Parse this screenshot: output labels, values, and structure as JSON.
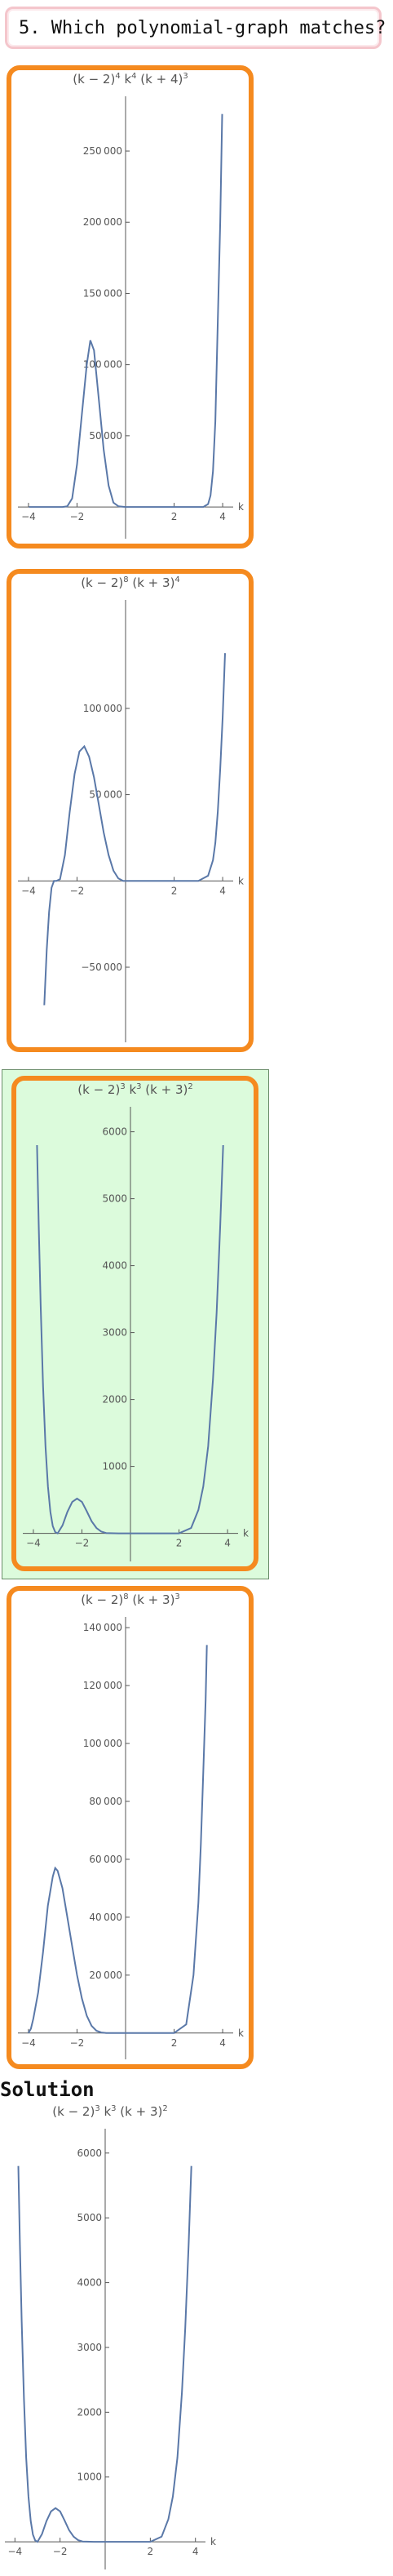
{
  "question": {
    "text": "5. Which polynomial‐graph matches?"
  },
  "solution": {
    "heading": "Solution"
  },
  "colors": {
    "choice_border": "#f58a1f",
    "selected_background": "#dcfbdc",
    "curve": "#5a78a8"
  },
  "selected_choice": 3,
  "chart_data": [
    {
      "type": "line",
      "role": "choice-1",
      "title_parts": [
        [
          "(k",
          ""
        ],
        [
          " − 2)",
          "4"
        ],
        [
          " k",
          "4"
        ],
        [
          " (k + 4)",
          "3"
        ]
      ],
      "xlabel": "k",
      "xlim": [
        -4.3,
        4.3
      ],
      "ylim": [
        -12000,
        285000
      ],
      "xticks": [
        -4,
        -2,
        2,
        4
      ],
      "xtick_labels": [
        "−4",
        "−2",
        "2",
        "4"
      ],
      "yticks": [
        50000,
        100000,
        150000,
        200000,
        250000
      ],
      "ytick_labels": [
        "50 000",
        "100 000",
        "150 000",
        "200 000",
        "250 000"
      ],
      "x": [
        -3.98,
        -3.9,
        -3.8,
        -3.7,
        -3.6,
        -3.5,
        -3.4,
        -3.2,
        -3.0,
        -2.8,
        -2.6,
        -2.4,
        -2.2,
        -2.0,
        -1.8,
        -1.6,
        -1.45,
        -1.3,
        -1.1,
        -0.9,
        -0.7,
        -0.5,
        -0.3,
        0.0,
        0.5,
        1.0,
        1.5,
        2.0,
        2.5,
        3.0,
        3.2,
        3.4,
        3.5,
        3.6,
        3.7,
        3.8,
        3.9,
        3.98
      ],
      "values": [
        0,
        0,
        0,
        0,
        0,
        0,
        0,
        0,
        0,
        0,
        0,
        500,
        6000,
        30000,
        65000,
        100000,
        117000,
        110000,
        75000,
        40000,
        15000,
        3000,
        500,
        0,
        0,
        0,
        0,
        0,
        0,
        0,
        0,
        2000,
        8000,
        25000,
        60000,
        130000,
        200000,
        276000
      ]
    },
    {
      "type": "line",
      "role": "choice-2",
      "title_parts": [
        [
          "(k",
          ""
        ],
        [
          " − 2)",
          "8"
        ],
        [
          " (k + 3)",
          "4"
        ]
      ],
      "xlabel": "k",
      "xlim": [
        -4.3,
        4.3
      ],
      "ylim": [
        -85000,
        160000
      ],
      "xticks": [
        -4,
        -2,
        2,
        4
      ],
      "xtick_labels": [
        "−4",
        "−2",
        "2",
        "4"
      ],
      "yticks": [
        -50000,
        50000,
        100000
      ],
      "ytick_labels": [
        "−50 000",
        "50 000",
        "100 000"
      ],
      "x": [
        -3.35,
        -3.25,
        -3.15,
        -3.05,
        -2.95,
        -2.85,
        -2.7,
        -2.5,
        -2.3,
        -2.1,
        -1.9,
        -1.7,
        -1.5,
        -1.3,
        -1.1,
        -0.9,
        -0.7,
        -0.5,
        -0.3,
        -0.1,
        0.5,
        1.0,
        2.0,
        3.0,
        3.4,
        3.6,
        3.7,
        3.8,
        3.9,
        4.0,
        4.1
      ],
      "values": [
        -72000,
        -40000,
        -18000,
        -4000,
        0,
        0,
        1000,
        15000,
        40000,
        62000,
        75000,
        78000,
        72000,
        60000,
        44000,
        28000,
        15000,
        6000,
        1500,
        0,
        0,
        0,
        0,
        0,
        3000,
        12000,
        22000,
        40000,
        65000,
        95000,
        132000
      ]
    },
    {
      "type": "line",
      "role": "choice-3",
      "title_parts": [
        [
          "(k",
          ""
        ],
        [
          " − 2)",
          "3"
        ],
        [
          " k",
          "3"
        ],
        [
          " (k + 3)",
          "2"
        ]
      ],
      "xlabel": "k",
      "xlim": [
        -4.3,
        4.3
      ],
      "ylim": [
        -200,
        6300
      ],
      "xticks": [
        -4,
        -2,
        2,
        4
      ],
      "xtick_labels": [
        "−4",
        "−2",
        "2",
        "4"
      ],
      "yticks": [
        1000,
        2000,
        3000,
        4000,
        5000,
        6000
      ],
      "ytick_labels": [
        "1000",
        "2000",
        "3000",
        "4000",
        "5000",
        "6000"
      ],
      "x": [
        -3.85,
        -3.78,
        -3.7,
        -3.6,
        -3.5,
        -3.4,
        -3.3,
        -3.2,
        -3.1,
        -3.0,
        -2.8,
        -2.6,
        -2.4,
        -2.2,
        -2.0,
        -1.8,
        -1.6,
        -1.4,
        -1.2,
        -1.0,
        -0.5,
        0.0,
        0.5,
        1.0,
        1.5,
        2.0,
        2.5,
        2.8,
        3.0,
        3.2,
        3.4,
        3.55,
        3.7,
        3.82
      ],
      "values": [
        5800,
        4600,
        3400,
        2200,
        1300,
        700,
        320,
        110,
        20,
        0,
        120,
        320,
        470,
        520,
        470,
        330,
        180,
        80,
        25,
        5,
        0,
        0,
        0,
        0,
        0,
        0,
        80,
        350,
        700,
        1300,
        2300,
        3300,
        4600,
        5800
      ]
    },
    {
      "type": "line",
      "role": "choice-4",
      "title_parts": [
        [
          "(k",
          ""
        ],
        [
          " − 2)",
          "8"
        ],
        [
          " (k + 3)",
          "3"
        ]
      ],
      "xlabel": "k",
      "xlim": [
        -4.3,
        4.3
      ],
      "ylim": [
        -4000,
        142000
      ],
      "xticks": [
        -4,
        -2,
        2,
        4
      ],
      "xtick_labels": [
        "−4",
        "−2",
        "2",
        "4"
      ],
      "yticks": [
        20000,
        40000,
        60000,
        80000,
        100000,
        120000,
        140000
      ],
      "ytick_labels": [
        "20 000",
        "40 000",
        "60 000",
        "80 000",
        "100 000",
        "120 000",
        "140 000"
      ],
      "x": [
        -4.0,
        -3.9,
        -3.8,
        -3.6,
        -3.4,
        -3.2,
        -3.0,
        -2.9,
        -2.8,
        -2.6,
        -2.4,
        -2.2,
        -2.0,
        -1.8,
        -1.6,
        -1.4,
        -1.2,
        -1.0,
        -0.8,
        -0.5,
        0.0,
        1.0,
        2.0,
        2.5,
        2.8,
        3.0,
        3.1,
        3.2,
        3.3,
        3.35
      ],
      "values": [
        0,
        1500,
        5000,
        14000,
        28000,
        44000,
        54000,
        57000,
        56000,
        50000,
        40000,
        30000,
        20000,
        12000,
        6000,
        2500,
        800,
        200,
        0,
        0,
        0,
        0,
        0,
        3000,
        20000,
        45000,
        65000,
        90000,
        115000,
        134000
      ]
    },
    {
      "type": "line",
      "role": "solution",
      "title_parts": [
        [
          "(k",
          ""
        ],
        [
          " − 2)",
          "3"
        ],
        [
          " k",
          "3"
        ],
        [
          " (k + 3)",
          "2"
        ]
      ],
      "xlabel": "k",
      "xlim": [
        -4.3,
        4.3
      ],
      "ylim": [
        -200,
        6300
      ],
      "xticks": [
        -4,
        -2,
        2,
        4
      ],
      "xtick_labels": [
        "−4",
        "−2",
        "2",
        "4"
      ],
      "yticks": [
        1000,
        2000,
        3000,
        4000,
        5000,
        6000
      ],
      "ytick_labels": [
        "1000",
        "2000",
        "3000",
        "4000",
        "5000",
        "6000"
      ],
      "x": [
        -3.85,
        -3.78,
        -3.7,
        -3.6,
        -3.5,
        -3.4,
        -3.3,
        -3.2,
        -3.1,
        -3.0,
        -2.8,
        -2.6,
        -2.4,
        -2.2,
        -2.0,
        -1.8,
        -1.6,
        -1.4,
        -1.2,
        -1.0,
        -0.5,
        0.0,
        0.5,
        1.0,
        1.5,
        2.0,
        2.5,
        2.8,
        3.0,
        3.2,
        3.4,
        3.55,
        3.7,
        3.82
      ],
      "values": [
        5800,
        4600,
        3400,
        2200,
        1300,
        700,
        320,
        110,
        20,
        0,
        120,
        320,
        470,
        520,
        470,
        330,
        180,
        80,
        25,
        5,
        0,
        0,
        0,
        0,
        0,
        0,
        80,
        350,
        700,
        1300,
        2300,
        3300,
        4600,
        5800
      ]
    }
  ]
}
